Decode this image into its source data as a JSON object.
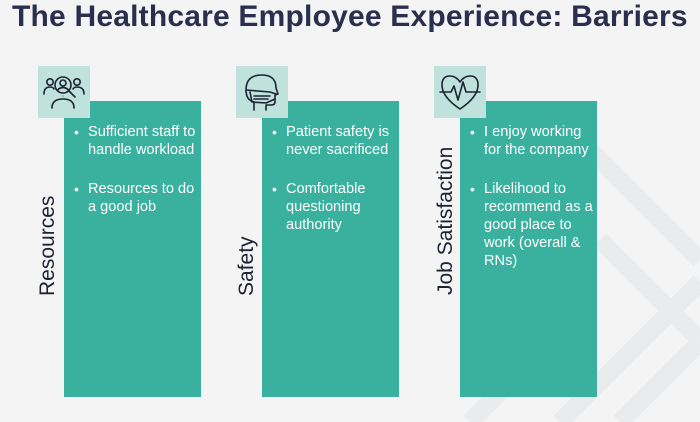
{
  "title": "The Healthcare Employee Experience: Barriers",
  "colors": {
    "accent": "#3ab19f",
    "icon_bg": "#bfe3dc",
    "title": "#2a2f4f"
  },
  "columns": [
    {
      "label": "Resources",
      "icon": "people-magnifier-icon",
      "bullets": [
        "Sufficient staff to handle workload",
        "Resources to do a good job"
      ]
    },
    {
      "label": "Safety",
      "icon": "masked-face-icon",
      "bullets": [
        "Patient safety is never sacrificed",
        "Comfortable questioning authority"
      ]
    },
    {
      "label": "Job Satisfaction",
      "icon": "heart-pulse-icon",
      "bullets": [
        "I enjoy working for the company",
        "Likelihood to recommend as a good place to work (overall & RNs)"
      ]
    }
  ]
}
